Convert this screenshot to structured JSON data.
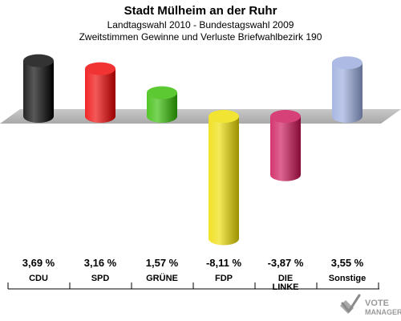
{
  "chart_data": {
    "type": "bar",
    "title": "Stadt Mülheim an der Ruhr",
    "subtitle_1": "Landtagswahl 2010 - Bundestagswahl 2009",
    "subtitle_2": "Zweitstimmen Gewinne und Verluste Briefwahlbezirk 190",
    "categories": [
      "CDU",
      "SPD",
      "GRÜNE",
      "FDP",
      "DIE LINKE",
      "Sonstige"
    ],
    "category_lines": [
      [
        "CDU"
      ],
      [
        "SPD"
      ],
      [
        "GRÜNE"
      ],
      [
        "FDP"
      ],
      [
        "DIE",
        "LINKE"
      ],
      [
        "Sonstige"
      ]
    ],
    "values": [
      3.69,
      3.16,
      1.57,
      -8.11,
      -3.87,
      3.55
    ],
    "value_labels": [
      "3,69 %",
      "3,16 %",
      "1,57 %",
      "-8,11 %",
      "-3,87 %",
      "3,55 %"
    ],
    "colors": [
      "#000000",
      "#ee0000",
      "#33bb00",
      "#eedd00",
      "#cc1155",
      "#99aadd"
    ],
    "ylim": [
      -9,
      4
    ],
    "xlabel": "",
    "ylabel": ""
  },
  "logo": {
    "line_1": "VOTE",
    "line_2": "MANAGER"
  }
}
